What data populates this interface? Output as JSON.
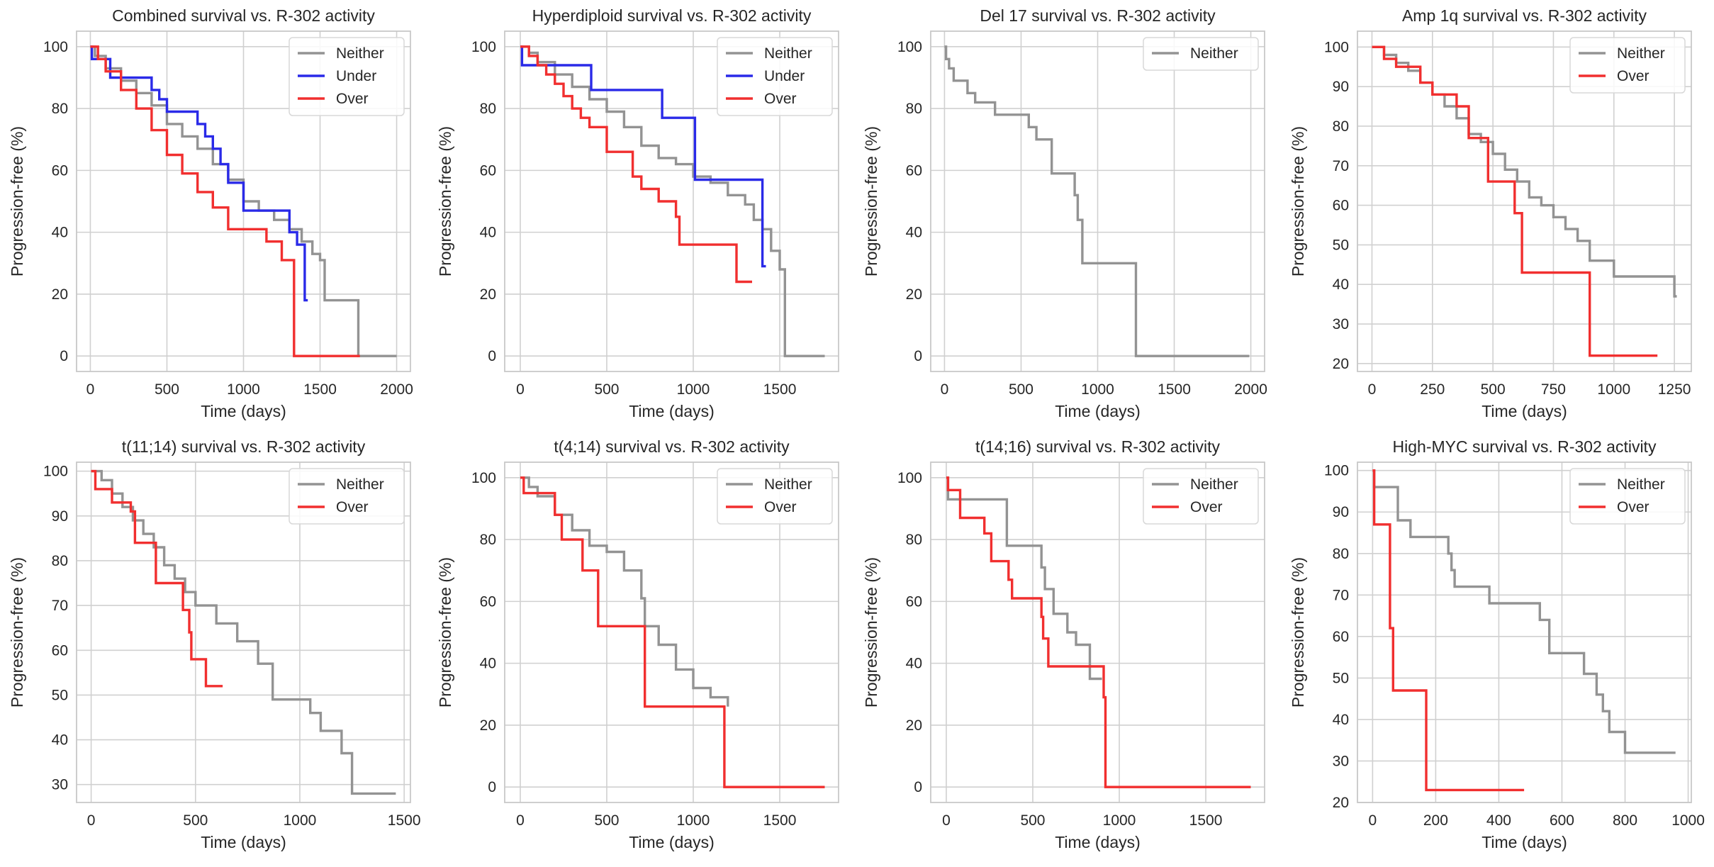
{
  "figure": {
    "colors": {
      "Neither": "#939393",
      "Under": "#2a2ae8",
      "Over": "#f12f2f",
      "grid": "#d0d0d0",
      "spine": "#c8c8c8",
      "text": "#262626"
    }
  },
  "chart_data": [
    {
      "type": "line",
      "title": "Combined survival vs. R-302 activity",
      "xlabel": "Time (days)",
      "ylabel": "Progression-free (%)",
      "xlim": [
        -90,
        2090
      ],
      "ylim": [
        -5,
        105
      ],
      "xticks": [
        0,
        500,
        1000,
        1500,
        2000
      ],
      "yticks": [
        0,
        20,
        40,
        60,
        80,
        100
      ],
      "grid": true,
      "legend": "top-right",
      "series": [
        {
          "name": "Neither",
          "x": [
            0,
            30,
            100,
            200,
            300,
            400,
            500,
            600,
            700,
            800,
            900,
            1000,
            1100,
            1200,
            1300,
            1380,
            1450,
            1500,
            1530,
            1750,
            2000
          ],
          "y": [
            100,
            97,
            93,
            89,
            85,
            81,
            75,
            71,
            67,
            62,
            57,
            50,
            47,
            44,
            41,
            37,
            33,
            31,
            18,
            0,
            0
          ]
        },
        {
          "name": "Under",
          "x": [
            0,
            10,
            130,
            400,
            450,
            500,
            700,
            750,
            800,
            850,
            900,
            1000,
            1300,
            1350,
            1400,
            1420
          ],
          "y": [
            100,
            96,
            90,
            86,
            83,
            79,
            75,
            71,
            67,
            62,
            56,
            47,
            40,
            36,
            18,
            18
          ],
          "label": "Under"
        },
        {
          "name": "Over",
          "x": [
            0,
            50,
            100,
            200,
            300,
            400,
            500,
            600,
            700,
            800,
            900,
            1050,
            1150,
            1250,
            1330,
            1760
          ],
          "y": [
            100,
            96,
            92,
            86,
            80,
            73,
            65,
            59,
            53,
            48,
            41,
            41,
            37,
            31,
            0,
            0
          ]
        }
      ]
    },
    {
      "type": "line",
      "title": "Hyperdiploid survival vs. R-302 activity",
      "xlabel": "Time (days)",
      "ylabel": "Progression-free (%)",
      "xlim": [
        -90,
        1840
      ],
      "ylim": [
        -5,
        105
      ],
      "xticks": [
        0,
        500,
        1000,
        1500
      ],
      "yticks": [
        0,
        20,
        40,
        60,
        80,
        100
      ],
      "grid": true,
      "legend": "top-right",
      "series": [
        {
          "name": "Neither",
          "x": [
            0,
            50,
            100,
            200,
            300,
            400,
            500,
            600,
            700,
            800,
            900,
            1000,
            1100,
            1200,
            1300,
            1350,
            1400,
            1450,
            1500,
            1530,
            1760
          ],
          "y": [
            100,
            98,
            95,
            91,
            87,
            83,
            79,
            74,
            68,
            64,
            62,
            58,
            56,
            52,
            49,
            44,
            41,
            34,
            28,
            0,
            0
          ]
        },
        {
          "name": "Under",
          "x": [
            0,
            10,
            410,
            820,
            1010,
            1400,
            1420
          ],
          "y": [
            100,
            94,
            86,
            77,
            57,
            29,
            29
          ]
        },
        {
          "name": "Over",
          "x": [
            0,
            50,
            100,
            150,
            200,
            250,
            300,
            350,
            400,
            500,
            650,
            700,
            800,
            900,
            920,
            1250,
            1340
          ],
          "y": [
            100,
            97,
            94,
            91,
            88,
            84,
            80,
            77,
            74,
            66,
            58,
            54,
            50,
            45,
            36,
            24,
            24
          ]
        }
      ]
    },
    {
      "type": "line",
      "title": "Del 17 survival vs. R-302 activity",
      "xlabel": "Time (days)",
      "ylabel": "Progression-free (%)",
      "xlim": [
        -90,
        2090
      ],
      "ylim": [
        -5,
        105
      ],
      "xticks": [
        0,
        500,
        1000,
        1500,
        2000
      ],
      "yticks": [
        0,
        20,
        40,
        60,
        80,
        100
      ],
      "grid": true,
      "legend": "top-right",
      "series": [
        {
          "name": "Neither",
          "x": [
            0,
            10,
            30,
            60,
            150,
            200,
            330,
            550,
            600,
            700,
            850,
            870,
            900,
            1250,
            1990
          ],
          "y": [
            100,
            96,
            93,
            89,
            85,
            82,
            78,
            74,
            70,
            59,
            52,
            44,
            30,
            0,
            0
          ]
        }
      ]
    },
    {
      "type": "line",
      "title": "Amp 1q survival vs. R-302 activity",
      "xlabel": "Time (days)",
      "ylabel": "Progression-free (%)",
      "xlim": [
        -60,
        1320
      ],
      "ylim": [
        18,
        104
      ],
      "xticks": [
        0,
        250,
        500,
        750,
        1000,
        1250
      ],
      "yticks": [
        20,
        30,
        40,
        50,
        60,
        70,
        80,
        90,
        100
      ],
      "grid": true,
      "legend": "top-right",
      "series": [
        {
          "name": "Neither",
          "x": [
            0,
            50,
            100,
            150,
            200,
            250,
            300,
            350,
            400,
            450,
            500,
            550,
            600,
            650,
            700,
            750,
            800,
            850,
            900,
            1000,
            1250,
            1260
          ],
          "y": [
            100,
            98,
            96,
            94,
            91,
            88,
            85,
            82,
            78,
            76,
            73,
            69,
            66,
            62,
            60,
            57,
            54,
            51,
            46,
            42,
            37,
            37
          ]
        },
        {
          "name": "Over",
          "x": [
            0,
            50,
            100,
            200,
            250,
            350,
            400,
            480,
            590,
            620,
            900,
            1180
          ],
          "y": [
            100,
            97,
            95,
            91,
            88,
            85,
            77,
            66,
            58,
            43,
            22,
            22
          ]
        }
      ]
    },
    {
      "type": "line",
      "title": "t(11;14) survival vs. R-302 activity",
      "xlabel": "Time (days)",
      "ylabel": "Progression-free (%)",
      "xlim": [
        -70,
        1530
      ],
      "ylim": [
        26,
        102
      ],
      "xticks": [
        0,
        500,
        1000,
        1500
      ],
      "yticks": [
        30,
        40,
        50,
        60,
        70,
        80,
        90,
        100
      ],
      "grid": true,
      "legend": "top-right",
      "series": [
        {
          "name": "Neither",
          "x": [
            0,
            50,
            100,
            150,
            200,
            250,
            300,
            350,
            400,
            450,
            500,
            600,
            700,
            800,
            870,
            1050,
            1100,
            1200,
            1250,
            1460
          ],
          "y": [
            100,
            98,
            95,
            92,
            89,
            86,
            83,
            79,
            76,
            73,
            70,
            66,
            62,
            57,
            49,
            46,
            42,
            37,
            28,
            28
          ]
        },
        {
          "name": "Over",
          "x": [
            0,
            20,
            100,
            190,
            210,
            310,
            440,
            470,
            480,
            550,
            630
          ],
          "y": [
            100,
            96,
            93,
            91,
            84,
            75,
            69,
            64,
            58,
            52,
            52
          ]
        }
      ]
    },
    {
      "type": "line",
      "title": "t(4;14) survival vs. R-302 activity",
      "xlabel": "Time (days)",
      "ylabel": "Progression-free (%)",
      "xlim": [
        -90,
        1840
      ],
      "ylim": [
        -5,
        105
      ],
      "xticks": [
        0,
        500,
        1000,
        1500
      ],
      "yticks": [
        0,
        20,
        40,
        60,
        80,
        100
      ],
      "grid": true,
      "legend": "top-right",
      "series": [
        {
          "name": "Neither",
          "x": [
            0,
            50,
            100,
            200,
            300,
            400,
            500,
            600,
            700,
            720,
            800,
            900,
            1000,
            1100,
            1200
          ],
          "y": [
            100,
            97,
            94,
            88,
            83,
            78,
            76,
            70,
            61,
            52,
            46,
            38,
            32,
            29,
            26
          ]
        },
        {
          "name": "Over",
          "x": [
            0,
            20,
            200,
            240,
            360,
            450,
            710,
            720,
            1180,
            1760
          ],
          "y": [
            100,
            95,
            88,
            80,
            70,
            52,
            52,
            26,
            0,
            0
          ]
        }
      ]
    },
    {
      "type": "line",
      "title": "t(14;16) survival vs. R-302 activity",
      "xlabel": "Time (days)",
      "ylabel": "Progression-free (%)",
      "xlim": [
        -90,
        1840
      ],
      "ylim": [
        -5,
        105
      ],
      "xticks": [
        0,
        500,
        1000,
        1500
      ],
      "yticks": [
        0,
        20,
        40,
        60,
        80,
        100
      ],
      "grid": true,
      "legend": "top-right",
      "series": [
        {
          "name": "Neither",
          "x": [
            0,
            10,
            350,
            550,
            570,
            620,
            700,
            750,
            830,
            900
          ],
          "y": [
            100,
            93,
            78,
            71,
            64,
            56,
            50,
            46,
            35,
            35
          ]
        },
        {
          "name": "Over",
          "x": [
            0,
            10,
            80,
            220,
            260,
            360,
            380,
            550,
            560,
            590,
            910,
            920,
            1760
          ],
          "y": [
            100,
            96,
            87,
            82,
            73,
            67,
            61,
            55,
            48,
            39,
            29,
            0,
            0
          ]
        }
      ]
    },
    {
      "type": "line",
      "title": "High-MYC survival vs. R-302 activity",
      "xlabel": "Time (days)",
      "ylabel": "Progression-free (%)",
      "xlim": [
        -48,
        1010
      ],
      "ylim": [
        20,
        102
      ],
      "xticks": [
        0,
        200,
        400,
        600,
        800,
        1000
      ],
      "yticks": [
        20,
        30,
        40,
        50,
        60,
        70,
        80,
        90,
        100
      ],
      "grid": true,
      "legend": "top-right",
      "series": [
        {
          "name": "Neither",
          "x": [
            0,
            5,
            80,
            120,
            240,
            250,
            260,
            370,
            530,
            560,
            670,
            710,
            730,
            750,
            800,
            960
          ],
          "y": [
            100,
            96,
            88,
            84,
            80,
            76,
            72,
            68,
            64,
            56,
            51,
            46,
            42,
            37,
            32,
            32
          ]
        },
        {
          "name": "Over",
          "x": [
            0,
            5,
            55,
            65,
            170,
            480
          ],
          "y": [
            100,
            87,
            62,
            47,
            23,
            23
          ]
        }
      ]
    }
  ]
}
